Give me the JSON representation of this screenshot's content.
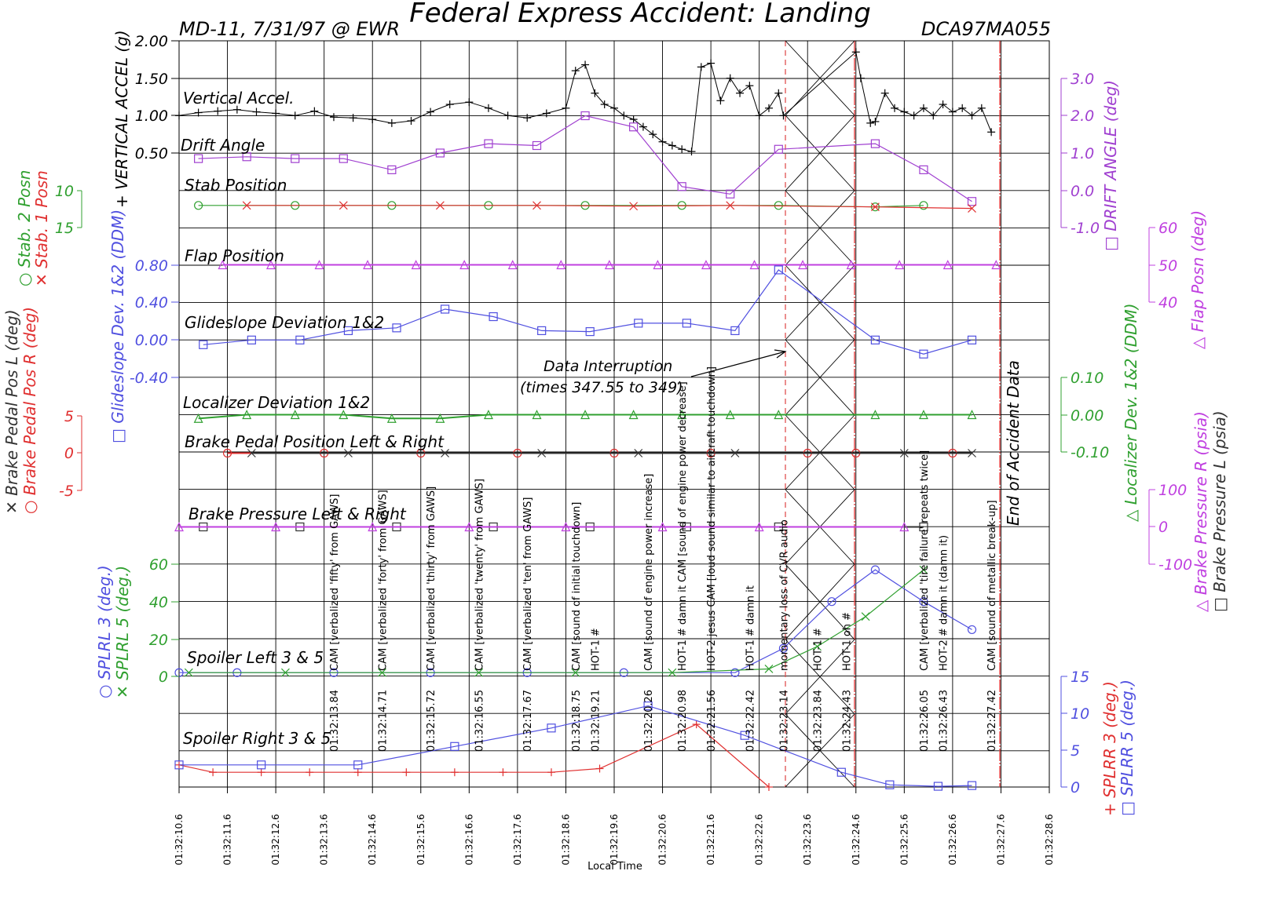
{
  "chart_data": {
    "type": "line",
    "title": "Federal Express Accident: Landing",
    "header_left": "MD-11, 7/31/97 @ EWR",
    "header_right": "DCA97MA055",
    "xlabel": "Local Time",
    "x_ticks": [
      "01:32:10.6",
      "01:32:11.6",
      "01:32:12.6",
      "01:32:13.6",
      "01:32:14.6",
      "01:32:15.6",
      "01:32:16.6",
      "01:32:17.6",
      "01:32:18.6",
      "01:32:19.6",
      "01:32:20.6",
      "01:32:21.6",
      "01:32:22.6",
      "01:32:23.6",
      "01:32:24.6",
      "01:32:25.6",
      "01:32:26.6",
      "01:32:27.6",
      "01:32:28.6"
    ],
    "x_range": [
      10.6,
      28.6
    ],
    "panels": {
      "vertical_accel": {
        "label": "Vertical Accel.",
        "axis_label": "+ VERTICAL ACCEL (g)",
        "ticks": [
          "2.00",
          "1.50",
          "1.00",
          "0.50"
        ],
        "ylim": [
          0.5,
          2.0
        ],
        "color": "#000000",
        "x": [
          10.6,
          11.0,
          11.4,
          11.8,
          12.2,
          12.6,
          13.0,
          13.4,
          13.8,
          14.2,
          14.6,
          15.0,
          15.4,
          15.8,
          16.2,
          16.6,
          17.0,
          17.4,
          17.8,
          18.2,
          18.6,
          18.8,
          19.0,
          19.2,
          19.4,
          19.6,
          19.8,
          20.0,
          20.2,
          20.4,
          20.6,
          20.8,
          21.0,
          21.2,
          21.4,
          21.6,
          21.8,
          22.0,
          22.2,
          22.4,
          22.6,
          22.8,
          23.0,
          23.1,
          24.6,
          24.7,
          24.9,
          25.0,
          25.2,
          25.4,
          25.6,
          25.8,
          26.0,
          26.2,
          26.4,
          26.6,
          26.8,
          27.0,
          27.2,
          27.4
        ],
        "y": [
          1.0,
          1.04,
          1.06,
          1.08,
          1.05,
          1.03,
          1.0,
          1.06,
          0.98,
          0.97,
          0.95,
          0.9,
          0.93,
          1.05,
          1.15,
          1.18,
          1.1,
          1.0,
          0.97,
          1.03,
          1.1,
          1.6,
          1.68,
          1.3,
          1.15,
          1.1,
          1.0,
          0.95,
          0.85,
          0.75,
          0.65,
          0.6,
          0.55,
          0.52,
          1.65,
          1.7,
          1.2,
          1.5,
          1.3,
          1.4,
          1.0,
          1.1,
          1.3,
          1.0,
          1.85,
          1.5,
          0.9,
          0.92,
          1.3,
          1.1,
          1.05,
          1.0,
          1.1,
          1.0,
          1.15,
          1.05,
          1.1,
          1.0,
          1.1,
          0.78
        ]
      },
      "drift_angle": {
        "label": "Drift Angle",
        "axis_label": "□ DRIFT ANGLE (deg)",
        "ticks": [
          "3.0",
          "2.0",
          "1.0",
          "0.0",
          "-1.0"
        ],
        "ylim": [
          -1.0,
          3.0
        ],
        "color": "#a040d0",
        "x": [
          11.0,
          12.0,
          13.0,
          14.0,
          15.0,
          16.0,
          17.0,
          18.0,
          19.0,
          20.0,
          21.0,
          22.0,
          23.0,
          25.0,
          26.0,
          27.0
        ],
        "y": [
          0.85,
          0.9,
          0.85,
          0.85,
          0.55,
          1.0,
          1.25,
          1.2,
          2.0,
          1.7,
          0.1,
          -0.1,
          1.1,
          1.25,
          0.55,
          -0.3
        ]
      },
      "stab_position": {
        "label": "Stab Position",
        "axis_label_1": "○ Stab. 2 Posn",
        "axis_label_2": "✕ Stab. 1 Posn",
        "ticks": [
          "10",
          "15"
        ],
        "series": [
          {
            "name": "Stab. 2 Posn",
            "color": "#30a030",
            "x": [
              11.0,
              13.0,
              15.0,
              17.0,
              19.0,
              21.0,
              23.0,
              25.0,
              26.0
            ],
            "y": [
              12.0,
              12.0,
              12.0,
              12.0,
              12.0,
              12.0,
              12.0,
              12.2,
              12.0
            ]
          },
          {
            "name": "Stab. 1 Posn",
            "color": "#e03030",
            "x": [
              12.0,
              14.0,
              16.0,
              18.0,
              20.0,
              22.0,
              25.0,
              27.0
            ],
            "y": [
              12.0,
              12.0,
              12.0,
              12.0,
              12.1,
              12.0,
              12.2,
              12.4
            ]
          }
        ]
      },
      "flap_position": {
        "label": "Flap Position",
        "axis_label": "△ Flap Posn (deg)",
        "ticks": [
          "60",
          "50",
          "40"
        ],
        "color": "#c040e0",
        "x": [
          11.5,
          12.5,
          13.5,
          14.5,
          15.5,
          16.5,
          17.5,
          18.5,
          19.5,
          20.5,
          21.5,
          22.5,
          23.5,
          24.5,
          25.5,
          26.5,
          27.5
        ],
        "y": [
          50,
          50,
          50,
          50,
          50,
          50,
          50,
          50,
          50,
          50,
          50,
          50,
          50,
          50,
          50,
          50,
          50
        ]
      },
      "glideslope": {
        "label": "Glideslope Deviation 1&2",
        "axis_label": "□ Glideslope Dev. 1&2 (DDM)",
        "ticks": [
          "0.80",
          "0.40",
          "0.00",
          "-0.40"
        ],
        "ylim": [
          -0.4,
          0.8
        ],
        "color": "#5050e0",
        "x": [
          11.1,
          12.1,
          13.1,
          14.1,
          15.1,
          16.1,
          17.1,
          18.1,
          19.1,
          20.1,
          21.1,
          22.1,
          23.0,
          25.0,
          26.0,
          27.0
        ],
        "y": [
          -0.05,
          0.0,
          0.0,
          0.1,
          0.13,
          0.33,
          0.25,
          0.1,
          0.09,
          0.18,
          0.18,
          0.1,
          0.75,
          0.0,
          -0.15,
          0.0
        ]
      },
      "localizer": {
        "label": "Localizer Deviation 1&2",
        "axis_label": "△ Localizer Dev. 1&2 (DDM)",
        "ticks": [
          "0.10",
          "0.00",
          "-0.10"
        ],
        "ylim": [
          -0.1,
          0.1
        ],
        "color": "#30a030",
        "x": [
          11.0,
          12.0,
          13.0,
          14.0,
          15.0,
          16.0,
          17.0,
          18.0,
          19.0,
          20.0,
          21.0,
          22.0,
          23.0,
          25.0,
          26.0,
          27.0
        ],
        "y": [
          -0.01,
          0.0,
          0.0,
          0.0,
          -0.01,
          -0.01,
          0.0,
          0.0,
          0.0,
          0.0,
          0.0,
          0.0,
          0.0,
          0.0,
          0.0,
          0.0
        ]
      },
      "brake_pedal": {
        "label": "Brake Pedal Position Left & Right",
        "axis_label_1": "✕ Brake Pedal Pos L (deg)",
        "axis_label_2": "○ Brake Pedal Pos R (deg)",
        "ticks": [
          "5",
          "0",
          "-5"
        ],
        "series": [
          {
            "name": "Brake Pedal Pos R",
            "color": "#e03030",
            "x": [
              11.6,
              13.6,
              15.6,
              17.6,
              19.6,
              21.6,
              23.6,
              24.6,
              26.6
            ],
            "y": [
              0,
              0,
              0,
              0,
              0,
              0,
              0,
              0,
              0
            ]
          },
          {
            "name": "Brake Pedal Pos L",
            "color": "#333333",
            "x": [
              12.1,
              14.1,
              16.1,
              18.1,
              20.1,
              22.1,
              25.6,
              27.0
            ],
            "y": [
              0,
              0,
              0,
              0,
              0,
              0,
              0,
              0
            ]
          }
        ]
      },
      "brake_pressure": {
        "label": "Brake Pressure Left & Right",
        "axis_label_1": "△ Brake Pressure R (psia)",
        "axis_label_2": "□ Brake Pressure L (psia)",
        "ticks": [
          "100",
          "0",
          "-100"
        ],
        "series": [
          {
            "name": "Brake Pressure L",
            "color": "#333333",
            "x": [
              11.1,
              13.1,
              15.1,
              17.1,
              19.1,
              21.1,
              23.0,
              26.0
            ],
            "y": [
              0,
              0,
              0,
              0,
              0,
              0,
              0,
              0
            ]
          },
          {
            "name": "Brake Pressure R",
            "color": "#c040e0",
            "x": [
              10.6,
              12.6,
              14.6,
              16.6,
              18.6,
              20.6,
              22.6,
              25.6
            ],
            "y": [
              0,
              0,
              0,
              0,
              0,
              0,
              0,
              0
            ]
          }
        ]
      },
      "spoiler_left": {
        "label": "Spoiler Left 3 & 5",
        "axis_label_1": "○ SPLRL 3 (deg.)",
        "axis_label_2": "✕ SPLRL 5 (deg.)",
        "ticks": [
          "60",
          "40",
          "20",
          "0"
        ],
        "ylim": [
          0,
          60
        ],
        "series": [
          {
            "name": "SPLRL 3",
            "color": "#5050e0",
            "x": [
              10.6,
              11.8,
              13.8,
              15.8,
              17.8,
              19.8,
              22.1,
              23.1,
              24.1,
              25.0,
              26.0,
              27.0
            ],
            "y": [
              2,
              2,
              2,
              2,
              2,
              2,
              2,
              15,
              40,
              57,
              40,
              25
            ]
          },
          {
            "name": "SPLRL 5",
            "color": "#30a030",
            "x": [
              10.8,
              12.8,
              14.8,
              16.8,
              18.8,
              20.8,
              22.8,
              23.8,
              24.8,
              26.0
            ],
            "y": [
              2,
              2,
              2,
              2,
              2,
              2,
              4,
              16,
              32,
              57
            ]
          }
        ]
      },
      "spoiler_right": {
        "label": "Spoiler Right 3 & 5",
        "axis_label_1": "+ SPLRR 3 (deg.)",
        "axis_label_2": "□ SPLRR 5 (deg.)",
        "ticks": [
          "15",
          "10",
          "5",
          "0"
        ],
        "ylim": [
          0,
          15
        ],
        "series": [
          {
            "name": "SPLRR 3",
            "color": "#e03030",
            "x": [
              10.6,
              11.3,
              12.3,
              13.3,
              14.3,
              15.3,
              16.3,
              17.3,
              18.3,
              19.3,
              21.3,
              22.8
            ],
            "y": [
              3,
              2,
              2,
              2,
              2,
              2,
              2,
              2,
              2,
              2.5,
              8.5,
              0
            ]
          },
          {
            "name": "SPLRR 5",
            "color": "#5050e0",
            "x": [
              10.6,
              12.3,
              14.3,
              16.3,
              18.3,
              20.3,
              22.3,
              24.3,
              25.3,
              26.3,
              27.0
            ],
            "y": [
              3,
              3,
              3,
              5.5,
              8,
              11,
              7,
              2,
              0.3,
              0.1,
              0.2
            ]
          }
        ]
      }
    },
    "annotations": [
      {
        "x": 13.8,
        "text": "CAM [verbalized 'fifty' from GAWS]",
        "time": "01:32:13.84"
      },
      {
        "x": 14.8,
        "text": "CAM [verbalized 'forty' from GAWS]",
        "time": "01:32:14.71"
      },
      {
        "x": 15.8,
        "text": "CAM [verbalized 'thirty' from GAWS]",
        "time": "01:32:15.72"
      },
      {
        "x": 16.8,
        "text": "CAM [verbalized 'twenty' from GAWS]",
        "time": "01:32:16.55"
      },
      {
        "x": 17.8,
        "text": "CAM [verbalized 'ten' from GAWS]",
        "time": "01:32:17.67"
      },
      {
        "x": 18.8,
        "text": "CAM [sound of initial touchdown]",
        "time": "01:32:18.75"
      },
      {
        "x": 19.2,
        "text": "HOT-1 #",
        "time": "01:32:19.21"
      },
      {
        "x": 20.3,
        "text": "CAM [sound of engine power increase]",
        "time": "01:32:20.26"
      },
      {
        "x": 21.0,
        "text": "HOT-1 # damn it  CAM [sound of engine power decrease]",
        "time": "01:32:20.98"
      },
      {
        "x": 21.6,
        "text": "HOT-2 jesus  CAM [loud sound similar to aircraft touchdown]",
        "time": "01:32:21.56"
      },
      {
        "x": 22.4,
        "text": "HOT-1 # damn it",
        "time": "01:32:22.42"
      },
      {
        "x": 23.1,
        "text": "momentary loss of CVR audio",
        "time": "01:32:23.14"
      },
      {
        "x": 23.8,
        "text": "HOT-1 #",
        "time": "01:32:23.84"
      },
      {
        "x": 24.4,
        "text": "HOT-1 oh #",
        "time": "01:32:24.43"
      },
      {
        "x": 26.0,
        "text": "CAM [verbalized 'tire failure' repeats twice]",
        "time": "01:32:26.05"
      },
      {
        "x": 26.4,
        "text": "HOT-2 # damn it (damn it)",
        "time": "01:32:26.43"
      },
      {
        "x": 27.4,
        "text": "CAM [sound of metallic break-up]",
        "time": "01:32:27.42"
      }
    ],
    "labels": {
      "data_interruption_1": "Data Interruption",
      "data_interruption_2": "(times 347.55 to 349)",
      "end_of_data": "End of Accident Data"
    }
  }
}
